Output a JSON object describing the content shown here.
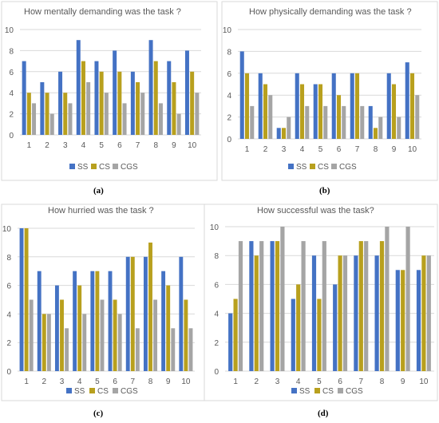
{
  "colors": {
    "SS": "#4472C4",
    "CS": "#B8A01E",
    "CGS": "#A5A5A5"
  },
  "chart_data": [
    {
      "type": "bar",
      "caption": "(a)",
      "title": "How mentally demanding was the task ?",
      "categories": [
        "1",
        "2",
        "3",
        "4",
        "5",
        "6",
        "7",
        "8",
        "9",
        "10"
      ],
      "ylim": [
        0,
        10
      ],
      "yticks": [
        "0",
        "2",
        "4",
        "6",
        "8",
        "10"
      ],
      "grid": true,
      "legend": "bottom",
      "series": [
        {
          "name": "SS",
          "values": [
            7,
            5,
            6,
            9,
            7,
            8,
            6,
            9,
            7,
            8
          ]
        },
        {
          "name": "CS",
          "values": [
            4,
            4,
            4,
            7,
            6,
            6,
            5,
            7,
            5,
            6
          ]
        },
        {
          "name": "CGS",
          "values": [
            3,
            2,
            3,
            5,
            4,
            3,
            4,
            3,
            2,
            4
          ]
        }
      ]
    },
    {
      "type": "bar",
      "caption": "(b)",
      "title": "How physically demanding was the task ?",
      "categories": [
        "1",
        "2",
        "3",
        "4",
        "5",
        "6",
        "7",
        "8",
        "9",
        "10"
      ],
      "ylim": [
        0,
        10
      ],
      "yticks": [
        "0",
        "2",
        "4",
        "6",
        "8",
        "10"
      ],
      "grid": true,
      "legend": "bottom",
      "series": [
        {
          "name": "SS",
          "values": [
            8,
            6,
            1,
            6,
            5,
            6,
            6,
            3,
            6,
            7
          ]
        },
        {
          "name": "CS",
          "values": [
            6,
            5,
            1,
            5,
            5,
            4,
            6,
            1,
            5,
            6
          ]
        },
        {
          "name": "CGS",
          "values": [
            3,
            4,
            2,
            3,
            3,
            3,
            3,
            2,
            2,
            4
          ]
        }
      ]
    },
    {
      "type": "bar",
      "caption": "(c)",
      "title": "How hurried was the task ?",
      "categories": [
        "1",
        "2",
        "3",
        "4",
        "5",
        "6",
        "7",
        "8",
        "9",
        "10"
      ],
      "ylim": [
        0,
        10
      ],
      "yticks": [
        "0",
        "2",
        "4",
        "6",
        "8",
        "10"
      ],
      "grid": true,
      "legend": "bottom",
      "series": [
        {
          "name": "SS",
          "values": [
            10,
            7,
            6,
            7,
            7,
            7,
            8,
            8,
            7,
            8
          ]
        },
        {
          "name": "CS",
          "values": [
            10,
            4,
            5,
            6,
            7,
            5,
            8,
            9,
            6,
            5
          ]
        },
        {
          "name": "CGS",
          "values": [
            5,
            4,
            3,
            4,
            5,
            4,
            3,
            5,
            3,
            3
          ]
        }
      ]
    },
    {
      "type": "bar",
      "caption": "(d)",
      "title": "How successful was the task?",
      "categories": [
        "1",
        "2",
        "3",
        "4",
        "5",
        "6",
        "7",
        "8",
        "9",
        "10"
      ],
      "ylim": [
        0,
        10
      ],
      "yticks": [
        "0",
        "2",
        "4",
        "6",
        "8",
        "10"
      ],
      "grid": true,
      "legend": "bottom",
      "series": [
        {
          "name": "SS",
          "values": [
            4,
            9,
            9,
            5,
            8,
            6,
            8,
            8,
            7,
            7
          ]
        },
        {
          "name": "CS",
          "values": [
            5,
            8,
            9,
            6,
            5,
            8,
            9,
            9,
            7,
            8
          ]
        },
        {
          "name": "CGS",
          "values": [
            9,
            9,
            10,
            9,
            9,
            8,
            9,
            10,
            10,
            8
          ]
        }
      ]
    }
  ]
}
